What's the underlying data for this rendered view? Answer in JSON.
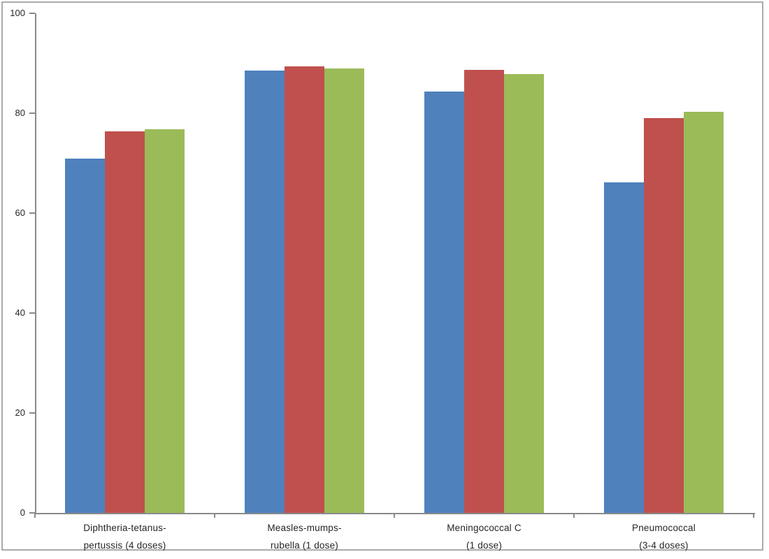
{
  "figure": {
    "background_color": "#FFFFFF",
    "border_color": "#ABABAB",
    "axis_color": "#8A8A8A",
    "text_color": "#262626"
  },
  "chart_data": {
    "type": "bar",
    "title": "",
    "xlabel": "",
    "ylabel": "",
    "ylim": [
      0,
      100
    ],
    "yticks": [
      0,
      20,
      40,
      60,
      80,
      100
    ],
    "grid": false,
    "legend": "none",
    "categories": [
      "Diphtheria-tetanus-pertussis (4 doses)",
      "Measles-mumps-rubella (1 dose)",
      "Meningococcal C (1 dose)",
      "Pneumococcal (3-4 doses)"
    ],
    "category_label_lines": [
      [
        "Diphtheria-tetanus-",
        "pertussis (4 doses)"
      ],
      [
        "Measles-mumps-",
        "rubella (1 dose)"
      ],
      [
        "Meningococcal C",
        "(1 dose)"
      ],
      [
        "Pneumococcal",
        "(3-4 doses)"
      ]
    ],
    "series": [
      {
        "key": "series-1-blue",
        "color": "#4F81BD",
        "values": [
          70.9,
          88.6,
          84.3,
          66.1
        ]
      },
      {
        "key": "series-2-red",
        "color": "#C0504D",
        "values": [
          76.4,
          89.4,
          88.7,
          79.0
        ]
      },
      {
        "key": "series-3-green",
        "color": "#9BBB59",
        "values": [
          76.8,
          89.0,
          87.8,
          80.3
        ]
      }
    ]
  }
}
